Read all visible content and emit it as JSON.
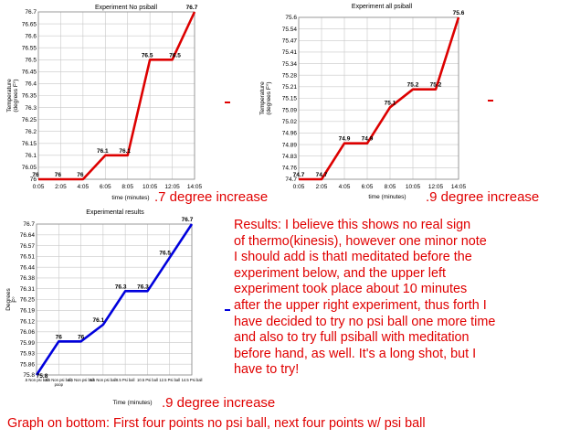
{
  "chart_data": [
    {
      "type": "line",
      "title": "Experiment No psiball",
      "xlabel": "time (minutes)",
      "ylabel": "Temperature (degrees F°)",
      "categories": [
        "0:05",
        "2:05",
        "4:05",
        "6:05",
        "8:05",
        "10:05",
        "12:05",
        "14:05"
      ],
      "values": [
        76,
        76,
        76,
        76.1,
        76.1,
        76.5,
        76.5,
        76.7
      ],
      "data_labels": [
        "76",
        "76",
        "76",
        "76.1",
        "76.1",
        "76.5",
        "76.5",
        "76.7"
      ],
      "y_ticks": [
        "76.7",
        "76.65",
        "76.6",
        "76.55",
        "76.5",
        "76.45",
        "76.4",
        "76.35",
        "76.3",
        "76.25",
        "76.2",
        "76.15",
        "76.1",
        "76.05",
        "76"
      ],
      "ylim": [
        76,
        76.7
      ],
      "grid": true,
      "color": "#dd0000"
    },
    {
      "type": "line",
      "title": "Experiment all psiball",
      "xlabel": "time (minutes)",
      "ylabel": "Temperature (degrees F°)",
      "categories": [
        "0:05",
        "2:05",
        "4:05",
        "6:05",
        "8:05",
        "10:05",
        "12:05",
        "14:05"
      ],
      "values": [
        74.7,
        74.7,
        74.9,
        74.9,
        75.1,
        75.2,
        75.2,
        75.6
      ],
      "data_labels": [
        "74.7",
        "74.7",
        "74.9",
        "74.9",
        "75.1",
        "75.2",
        "75.2",
        "75.6"
      ],
      "y_ticks": [
        "75.6",
        "75.54",
        "75.47",
        "75.41",
        "75.34",
        "75.28",
        "75.21",
        "75.15",
        "75.09",
        "75.02",
        "74.96",
        "74.89",
        "74.83",
        "74.76",
        "74.7"
      ],
      "ylim": [
        74.7,
        75.6
      ],
      "grid": true,
      "color": "#dd0000"
    },
    {
      "type": "line",
      "title": "Experimental results",
      "xlabel": "Time (minutes)",
      "ylabel": "Degrees F°",
      "categories": [
        ".5 Non psi ball",
        "2.5 Non psi ball, poop",
        "4.5 Non psi ball",
        "6.5 Non psi ball",
        "8.5 Psi ball",
        "10.5 Psi ball",
        "12.5 Psi ball",
        "14.5 Psi ball"
      ],
      "values": [
        75.8,
        76,
        76,
        76.1,
        76.3,
        76.3,
        76.5,
        76.7
      ],
      "data_labels": [
        "75.8",
        "76",
        "76",
        "76.1",
        "76.3",
        "76.3",
        "76.5",
        "76.7"
      ],
      "y_ticks": [
        "76.7",
        "76.64",
        "76.57",
        "76.51",
        "76.44",
        "76.38",
        "76.31",
        "76.25",
        "76.19",
        "76.12",
        "76.06",
        "75.99",
        "75.93",
        "75.86",
        "75.8"
      ],
      "ylim": [
        75.8,
        76.7
      ],
      "grid": true,
      "color": "#0000dd"
    }
  ],
  "annotations": {
    "chart1_note": ".7 degree increase",
    "chart2_note": ".9 degree increase",
    "chart3_note": ".9 degree increase",
    "results_lines": [
      "Results: I believe this shows no real sign",
      " of thermo(kinesis), however one minor note",
      "I should add is thatI meditated before the",
      "  experiment below, and the upper left",
      "  experiment took place about 10 minutes",
      "  after the upper right experiment, thus forth I",
      "  have decided to try no psi ball one more time",
      "  and also to try full psiball with meditation",
      "    before hand, as well. It's a long shot, but I",
      "    have to try!"
    ],
    "footer": "Graph on bottom: First four points no psi ball, next four points w/ psi ball",
    "accent_red": "#e00000",
    "accent_blue": "#0000dd"
  }
}
